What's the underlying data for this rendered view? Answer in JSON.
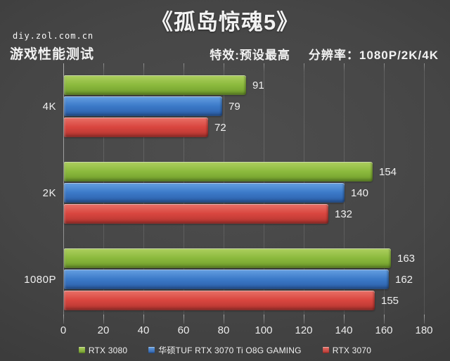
{
  "header": {
    "title": "《孤岛惊魂5》",
    "site": "diy.zol.com.cn",
    "subtitle": "游戏性能测试",
    "effects": "特效:预设最高",
    "resolution": "分辨率：1080P/2K/4K"
  },
  "chart_data": {
    "type": "bar",
    "orientation": "horizontal",
    "title": "《孤岛惊魂5》",
    "categories": [
      "4K",
      "2K",
      "1080P"
    ],
    "series": [
      {
        "name": "RTX 3080",
        "values": [
          91,
          154,
          163
        ],
        "color": "#8cba3e",
        "color_light": "#aed05f",
        "color_dark": "#6f9c2b"
      },
      {
        "name": "华硕TUF RTX 3070 Ti O8G GAMING",
        "values": [
          79,
          140,
          162
        ],
        "color": "#3c7ac8",
        "color_light": "#66a0e2",
        "color_dark": "#2b5ea8"
      },
      {
        "name": "RTX 3070",
        "values": [
          72,
          132,
          155
        ],
        "color": "#d9463f",
        "color_light": "#e97168",
        "color_dark": "#b23530"
      }
    ],
    "xlim": [
      0,
      180
    ],
    "xticks": [
      0,
      20,
      40,
      60,
      80,
      100,
      120,
      140,
      160,
      180
    ],
    "grid": true,
    "value_labels": true,
    "legend_position": "bottom",
    "background": "#424242",
    "text_color": "#f2f2f2"
  }
}
